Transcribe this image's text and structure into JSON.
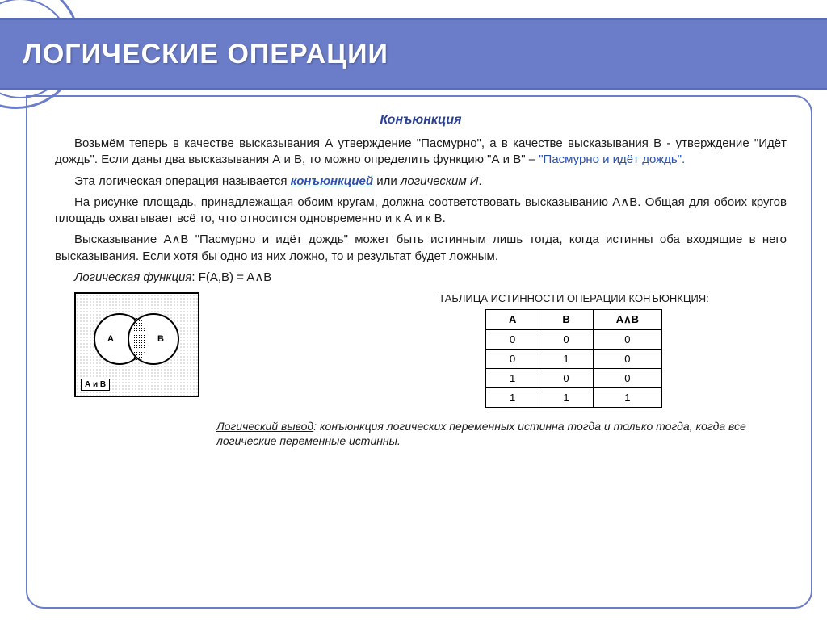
{
  "title": "ЛОГИЧЕСКИЕ ОПЕРАЦИИ",
  "subtitle": "Конъюнкция",
  "p1a": "Возьмём теперь в качестве высказывания А утверждение \"Пасмурно\", а в качестве высказывания В - утверждение \"Идёт дождь\". Если даны два высказывания А и В, то можно определить функцию \"А и В\" – ",
  "p1b": "\"Пасмурно и идёт дождь\".",
  "p2a": "Эта логическая операция называется ",
  "p2b": "конъюнкцией",
  "p2c": " или ",
  "p2d": "логическим И",
  "p2e": ".",
  "p3": "На рисунке площадь, принадлежащая обоим кругам, должна соответствовать высказыванию А∧В. Общая для обоих кругов площадь охватывает всё то, что относится одновременно и к А и к В.",
  "p4": "Высказывание А∧В \"Пасмурно и идёт дождь\" может быть истинным лишь тогда, когда истинны оба входящие в него высказывания. Если хотя бы одно из них ложно, то и результат будет ложным.",
  "func_label": "Логическая функция",
  "func_expr": ": F(A,B) = A∧B",
  "venn": {
    "a": "A",
    "b": "B",
    "caption": "А и В"
  },
  "table": {
    "title": "ТАБЛИЦА ИСТИННОСТИ ОПЕРАЦИИ КОНЪЮНКЦИЯ:",
    "headers": [
      "A",
      "B",
      "A∧B"
    ],
    "rows": [
      [
        "0",
        "0",
        "0"
      ],
      [
        "0",
        "1",
        "0"
      ],
      [
        "1",
        "0",
        "0"
      ],
      [
        "1",
        "1",
        "1"
      ]
    ]
  },
  "conclusion_label": "Логический вывод",
  "conclusion_text": ": конъюнкция логических переменных истинна тогда и только тогда, когда все логические переменные истинны.",
  "colors": {
    "accent": "#6b7dc9",
    "text_blue": "#2a50b0",
    "title_blue": "#2a4090"
  }
}
